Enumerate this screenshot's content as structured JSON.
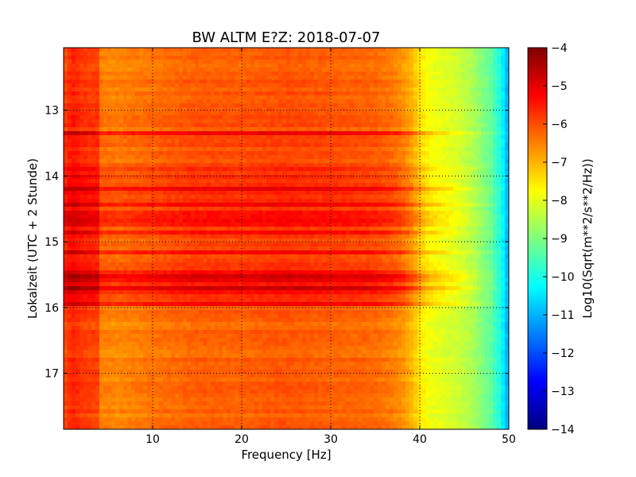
{
  "chart_data": {
    "type": "heatmap",
    "title": "BW ALTM E?Z: 2018-07-07",
    "xlabel": "Frequency [Hz]",
    "ylabel": "Lokalzeit (UTC + 2 Stunde)",
    "xlim": [
      0,
      50
    ],
    "ylim": [
      12.05,
      17.85
    ],
    "y_inverted": true,
    "xticks": [
      10,
      20,
      30,
      40,
      50
    ],
    "yticks": [
      13,
      14,
      15,
      16,
      17
    ],
    "grid": true,
    "colormap": "jet",
    "colorbar": {
      "label": "Log10(Sqrt(m**2/s**2/Hz))",
      "range": [
        -14,
        -4
      ],
      "ticks": [
        -4,
        -5,
        -6,
        -7,
        -8,
        -9,
        -10,
        -11,
        -12,
        -13,
        -14
      ]
    },
    "frequency_profile": {
      "frequency_hz": [
        0,
        1,
        2,
        3,
        3.8,
        4,
        6,
        10,
        15,
        20,
        25,
        30,
        35,
        37,
        38,
        39,
        40,
        41,
        42,
        44,
        46,
        48,
        49,
        49.5,
        50
      ],
      "level": [
        -6.0,
        -5.6,
        -5.8,
        -5.9,
        -5.9,
        -6.5,
        -6.6,
        -6.4,
        -6.2,
        -6.2,
        -6.1,
        -6.2,
        -6.3,
        -6.5,
        -6.7,
        -7.0,
        -7.5,
        -7.9,
        -8.0,
        -8.2,
        -8.6,
        -9.3,
        -10.0,
        -10.6,
        -11.2
      ]
    },
    "time_bands": [
      {
        "start": 12.05,
        "end": 12.55,
        "offset": 0.0
      },
      {
        "start": 12.55,
        "end": 13.3,
        "offset": 0.1
      },
      {
        "start": 13.3,
        "end": 13.35,
        "offset": 0.6
      },
      {
        "start": 13.35,
        "end": 13.85,
        "offset": 0.2
      },
      {
        "start": 13.85,
        "end": 14.3,
        "offset": 0.5
      },
      {
        "start": 14.3,
        "end": 14.95,
        "offset": 0.45
      },
      {
        "start": 14.95,
        "end": 15.45,
        "offset": 0.3
      },
      {
        "start": 15.45,
        "end": 15.8,
        "offset": 0.8
      },
      {
        "start": 15.8,
        "end": 16.0,
        "offset": 0.4
      },
      {
        "start": 16.0,
        "end": 17.85,
        "offset": 0.0
      }
    ],
    "horizontal_streaks": [
      13.35,
      14.2,
      14.45,
      14.55,
      14.65,
      14.75,
      14.85,
      15.15,
      15.55,
      15.7,
      15.95
    ]
  }
}
